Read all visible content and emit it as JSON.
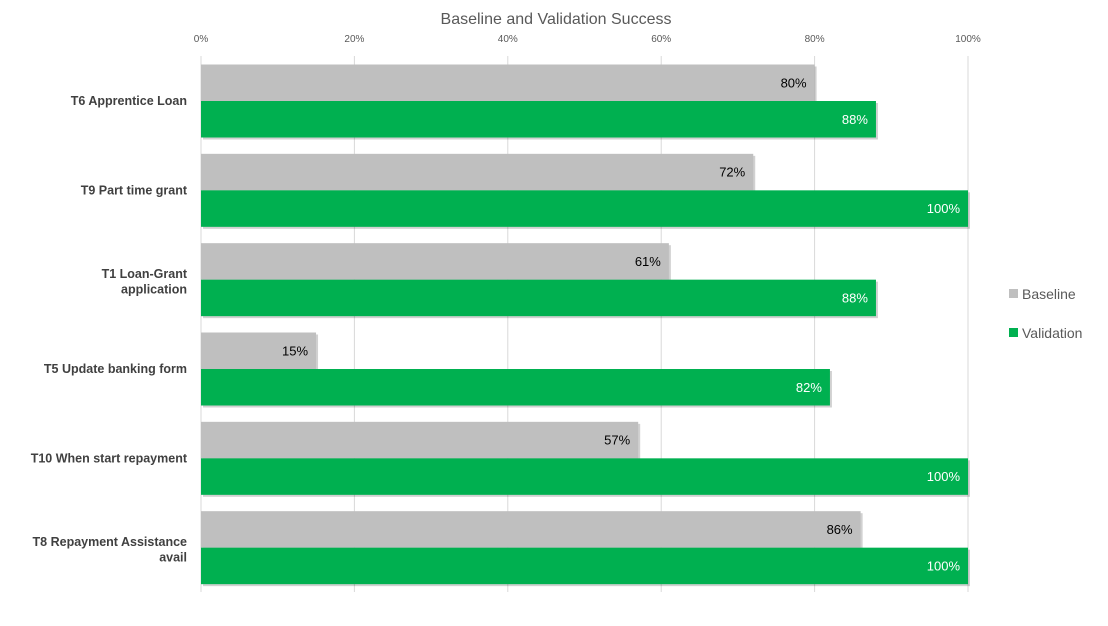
{
  "chart_data": {
    "type": "bar",
    "orientation": "horizontal",
    "title": "Baseline and Validation Success",
    "xlabel": "",
    "ylabel": "",
    "xlim": [
      0,
      100
    ],
    "x_ticks": [
      "0%",
      "20%",
      "40%",
      "60%",
      "80%",
      "100%"
    ],
    "x_tick_values": [
      0,
      20,
      40,
      60,
      80,
      100
    ],
    "grid": true,
    "legend_position": "right",
    "categories": [
      "T6 Apprentice Loan",
      "T9 Part time grant",
      "T1 Loan-Grant application",
      "T5 Update banking form",
      "T10 When start repayment",
      "T8 Repayment Assistance avail"
    ],
    "series": [
      {
        "name": "Baseline",
        "color": "#bfbfbf",
        "label_color": "#000000",
        "values": [
          80,
          72,
          61,
          15,
          57,
          86
        ],
        "labels": [
          "80%",
          "72%",
          "61%",
          "15%",
          "57%",
          "86%"
        ]
      },
      {
        "name": "Validation",
        "color": "#00b050",
        "label_color": "#ffffff",
        "values": [
          88,
          100,
          88,
          82,
          100,
          100
        ],
        "labels": [
          "88%",
          "100%",
          "88%",
          "82%",
          "100%",
          "100%"
        ]
      }
    ]
  }
}
